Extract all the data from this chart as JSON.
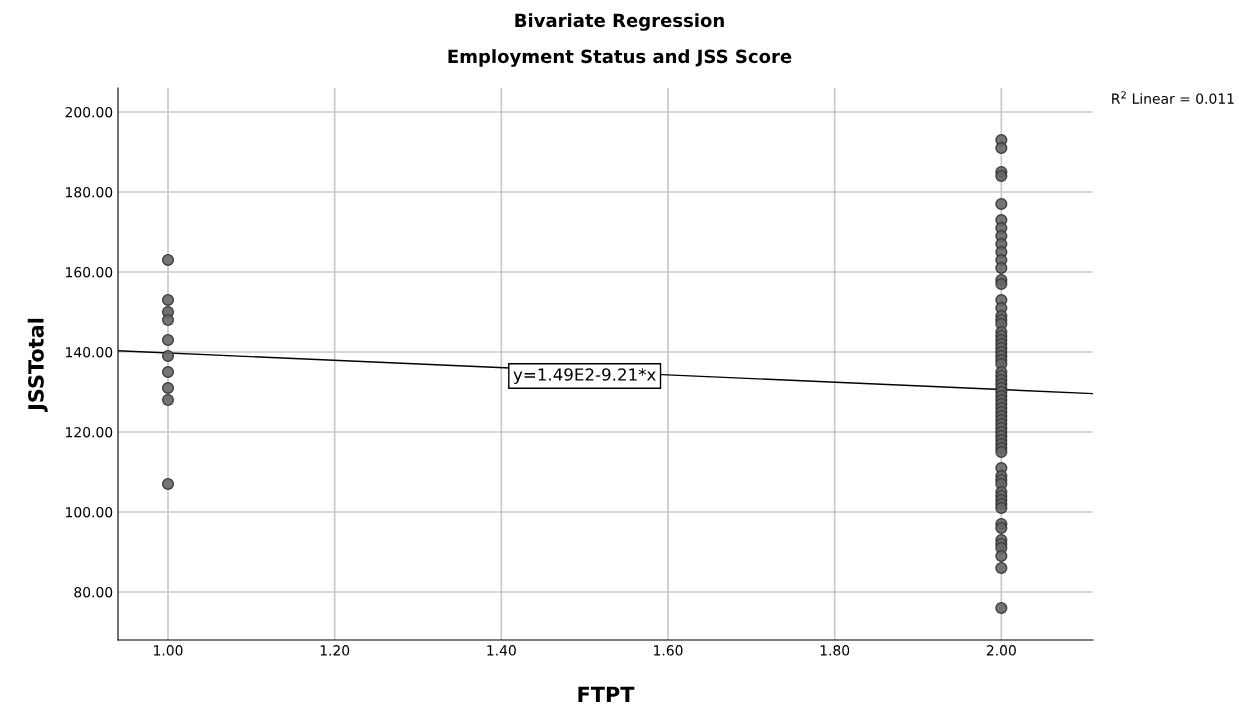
{
  "chart_data": {
    "type": "scatter",
    "title": "Bivariate Regression",
    "subtitle": "Employment Status and JSS Score",
    "xlabel": "FTPT",
    "ylabel": "JSSTotal",
    "xlim": [
      0.94,
      2.11
    ],
    "ylim": [
      68,
      206
    ],
    "xticks": [
      {
        "value": 1,
        "label": "1.00"
      },
      {
        "value": 1.2,
        "label": "1.20"
      },
      {
        "value": 1.4,
        "label": "1.40"
      },
      {
        "value": 1.6,
        "label": "1.60"
      },
      {
        "value": 1.8,
        "label": "1.80"
      },
      {
        "value": 2,
        "label": "2.00"
      }
    ],
    "yticks": [
      {
        "value": 80,
        "label": "80.00"
      },
      {
        "value": 100,
        "label": "100.00"
      },
      {
        "value": 120,
        "label": "120.00"
      },
      {
        "value": 140,
        "label": "140.00"
      },
      {
        "value": 160,
        "label": "160.00"
      },
      {
        "value": 180,
        "label": "180.00"
      },
      {
        "value": 200,
        "label": "200.00"
      }
    ],
    "grid": true,
    "marker": "circle",
    "legend": false,
    "series": [
      {
        "color": "#666666",
        "x": [
          1,
          1,
          1,
          1,
          1,
          1,
          1,
          1,
          1,
          1,
          2,
          2,
          2,
          2,
          2,
          2,
          2,
          2,
          2,
          2,
          2,
          2,
          2,
          2,
          2,
          2,
          2,
          2,
          2,
          2,
          2,
          2,
          2,
          2,
          2,
          2,
          2,
          2,
          2,
          2,
          2,
          2,
          2,
          2,
          2,
          2,
          2,
          2,
          2,
          2,
          2,
          2,
          2,
          2,
          2,
          2,
          2,
          2,
          2,
          2,
          2,
          2,
          2,
          2,
          2,
          2,
          2,
          2,
          2,
          2,
          2,
          2,
          2,
          2,
          2,
          2
        ],
        "values": [
          163,
          153,
          150,
          148,
          143,
          139,
          135,
          131,
          128,
          107,
          193,
          191,
          185,
          184,
          177,
          173,
          171,
          169,
          167,
          165,
          163,
          161,
          158,
          157,
          153,
          151,
          149,
          148,
          147,
          145,
          144,
          143,
          142,
          141,
          140,
          139,
          138,
          137,
          135,
          134,
          133,
          132,
          131,
          130,
          129,
          128,
          127,
          126,
          125,
          124,
          123,
          122,
          121,
          120,
          119,
          118,
          117,
          116,
          115,
          111,
          109,
          108,
          107,
          105,
          104,
          103,
          102,
          101,
          97,
          96,
          93,
          92,
          91,
          89,
          86,
          76
        ]
      },
      {
        "type": "line",
        "color": "#000000",
        "marker": "none",
        "x": [
          0.94,
          2.11
        ],
        "values": [
          140.3,
          129.6
        ]
      }
    ],
    "annotations": [
      {
        "text": "y=1.49E2-9.21*x",
        "x": 1.5,
        "y": 134
      },
      "R$^{2}$ Linear = 0.011"
    ]
  }
}
